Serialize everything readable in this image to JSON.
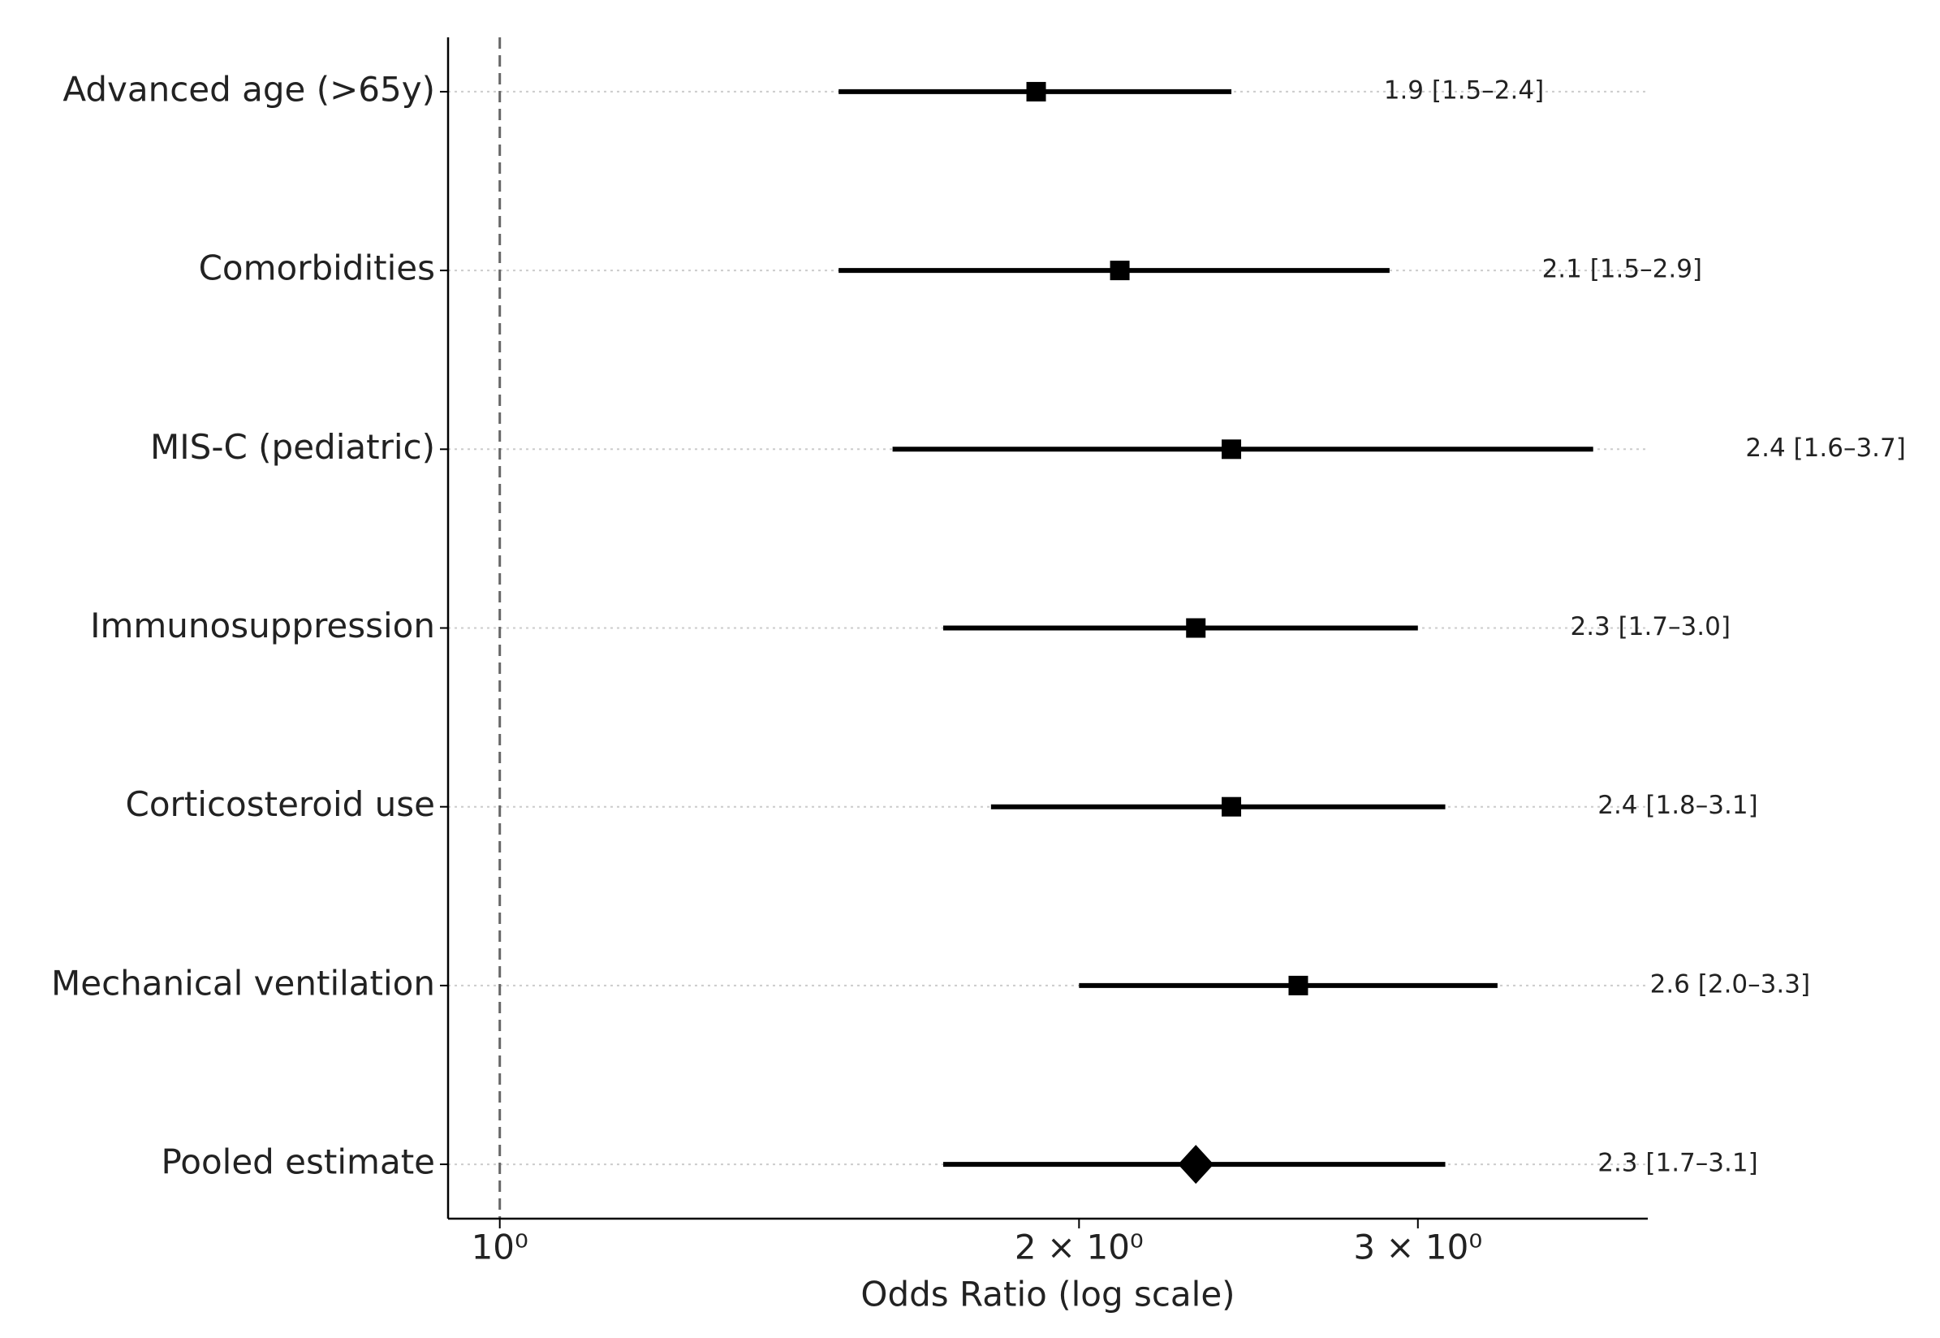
{
  "chart_data": {
    "type": "forest",
    "xlabel": "Odds Ratio (log scale)",
    "categories": [
      "Advanced age (>65y)",
      "Comorbidities",
      "MIS-C (pediatric)",
      "Immunosuppression",
      "Corticosteroid use",
      "Mechanical ventilation",
      "Pooled estimate"
    ],
    "values": [
      1.9,
      2.1,
      2.4,
      2.3,
      2.4,
      2.6,
      2.3
    ],
    "lower": [
      1.5,
      1.5,
      1.6,
      1.7,
      1.8,
      2.0,
      1.7
    ],
    "upper": [
      2.4,
      2.9,
      3.7,
      3.0,
      3.1,
      3.3,
      3.1
    ],
    "value_labels": [
      "1.9 [1.5–2.4]",
      "2.1 [1.5–2.9]",
      "2.4 [1.6–3.7]",
      "2.3 [1.7–3.0]",
      "2.4 [1.8–3.1]",
      "2.6 [2.0–3.3]",
      "2.3 [1.7–3.1]"
    ],
    "markers": [
      "square",
      "square",
      "square",
      "square",
      "square",
      "square",
      "diamond"
    ],
    "color": "#000000",
    "xscale": "log",
    "xlim": [
      0.94,
      3.95
    ],
    "xticks": [
      {
        "value": 1,
        "label": "10⁰"
      },
      {
        "value": 2,
        "label": "2 × 10⁰"
      },
      {
        "value": 3,
        "label": "3 × 10⁰"
      }
    ],
    "reference_line": 1,
    "grid": true
  }
}
